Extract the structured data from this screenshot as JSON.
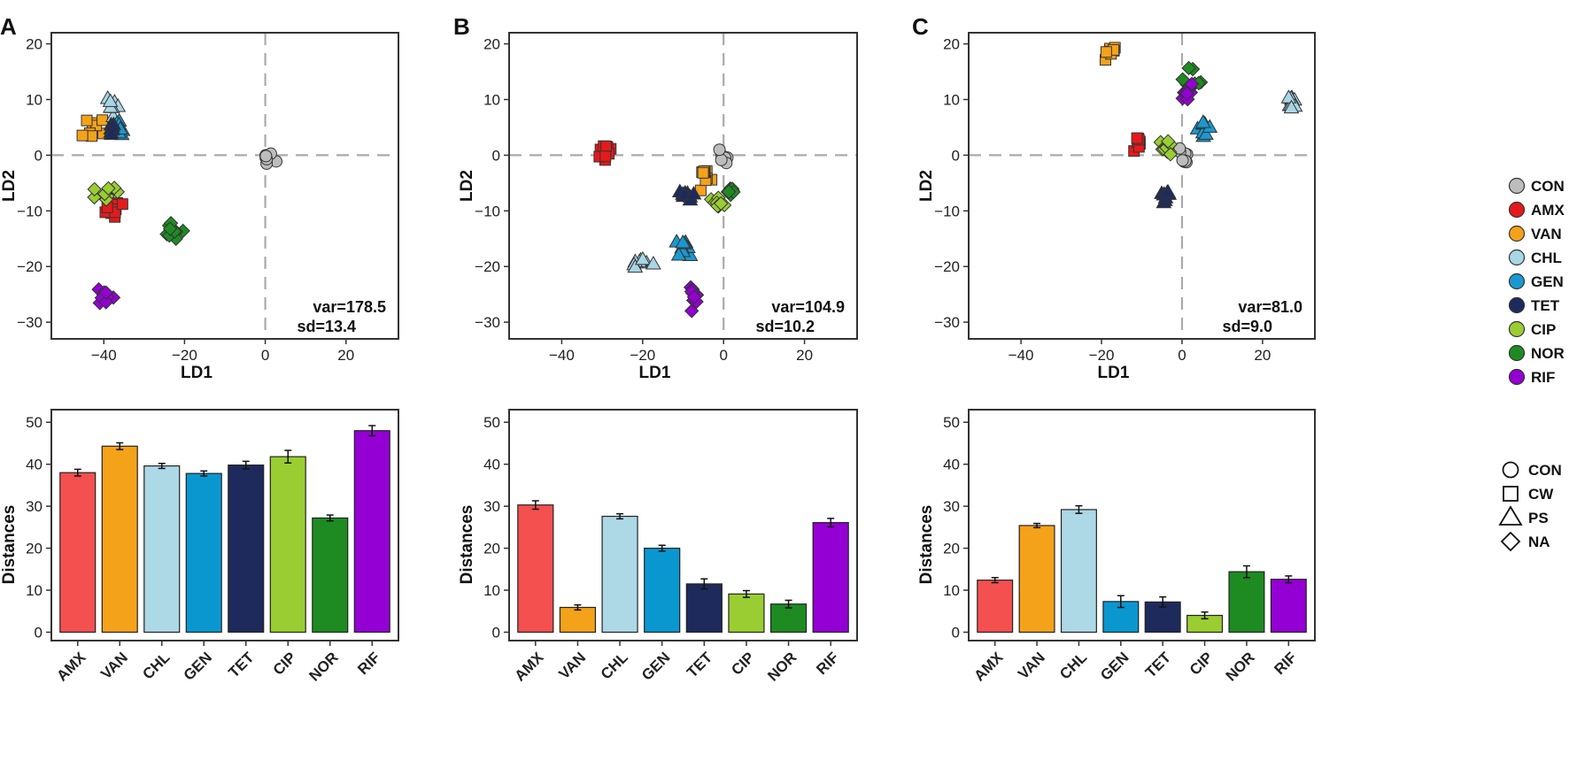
{
  "panel_labels": [
    "A",
    "B",
    "C"
  ],
  "colors": {
    "CON": "#bdbdbd",
    "AMX": "#e41a1c",
    "VAN": "#f5a21b",
    "CHL": "#a9d6e5",
    "GEN": "#1b98cf",
    "TET": "#1d2a5e",
    "CIP": "#9acd32",
    "NOR": "#1e8b22",
    "RIF": "#9400d3"
  },
  "bar_colors": {
    "AMX": "#f4504f",
    "VAN": "#f5a21b",
    "CHL": "#add8e6",
    "GEN": "#0a97d0",
    "TET": "#1f2a5c",
    "CIP": "#9acd32",
    "NOR": "#1e8b22",
    "RIF": "#9400d3"
  },
  "color_legend": {
    "items": [
      {
        "label": "CON",
        "key": "CON"
      },
      {
        "label": "AMX",
        "key": "AMX"
      },
      {
        "label": "VAN",
        "key": "VAN"
      },
      {
        "label": "CHL",
        "key": "CHL"
      },
      {
        "label": "GEN",
        "key": "GEN"
      },
      {
        "label": "TET",
        "key": "TET"
      },
      {
        "label": "CIP",
        "key": "CIP"
      },
      {
        "label": "NOR",
        "key": "NOR"
      },
      {
        "label": "RIF",
        "key": "RIF"
      }
    ]
  },
  "shape_legend": {
    "items": [
      {
        "label": "CON",
        "shape": "circle"
      },
      {
        "label": "CW",
        "shape": "square"
      },
      {
        "label": "PS",
        "shape": "triangle"
      },
      {
        "label": "NA",
        "shape": "diamond"
      }
    ]
  },
  "chart_data": [
    {
      "panel": "A",
      "type": "scatter",
      "xlabel": "LD1",
      "ylabel": "LD2",
      "xlim": [
        -53,
        33
      ],
      "ylim": [
        -33,
        22
      ],
      "xticks": [
        -40,
        -20,
        0,
        20
      ],
      "yticks": [
        -30,
        -20,
        -10,
        0,
        10,
        20
      ],
      "annotation": [
        "var=178.5",
        "sd=13.4"
      ],
      "clusters": [
        {
          "group": "CON",
          "shape": "circle",
          "center": [
            0,
            -0.5
          ],
          "spread": [
            1.2,
            1.2
          ]
        },
        {
          "group": "AMX",
          "shape": "square",
          "center": [
            -37,
            -9.5
          ],
          "spread": [
            1.5,
            1.0
          ]
        },
        {
          "group": "VAN",
          "shape": "square",
          "center": [
            -41.5,
            5
          ],
          "spread": [
            1.8,
            2.0
          ]
        },
        {
          "group": "CHL",
          "shape": "triangle",
          "center": [
            -38,
            9
          ],
          "spread": [
            1.0,
            1.0
          ]
        },
        {
          "group": "GEN",
          "shape": "triangle",
          "center": [
            -36,
            4.5
          ],
          "spread": [
            1.0,
            1.0
          ]
        },
        {
          "group": "TET",
          "shape": "triangle",
          "center": [
            -38,
            5
          ],
          "spread": [
            1.0,
            0.8
          ]
        },
        {
          "group": "CIP",
          "shape": "diamond",
          "center": [
            -40,
            -7
          ],
          "spread": [
            1.8,
            1.5
          ]
        },
        {
          "group": "NOR",
          "shape": "diamond",
          "center": [
            -23,
            -14
          ],
          "spread": [
            1.3,
            1.0
          ]
        },
        {
          "group": "RIF",
          "shape": "diamond",
          "center": [
            -40,
            -25
          ],
          "spread": [
            1.5,
            1.2
          ]
        }
      ]
    },
    {
      "panel": "B",
      "type": "scatter",
      "xlabel": "LD1",
      "ylabel": "LD2",
      "xlim": [
        -53,
        33
      ],
      "ylim": [
        -33,
        22
      ],
      "xticks": [
        -40,
        -20,
        0,
        20
      ],
      "yticks": [
        -30,
        -20,
        -10,
        0,
        10,
        20
      ],
      "annotation": [
        "var=104.9",
        "sd=10.2"
      ],
      "clusters": [
        {
          "group": "CON",
          "shape": "circle",
          "center": [
            0,
            0
          ],
          "spread": [
            1.0,
            1.0
          ]
        },
        {
          "group": "AMX",
          "shape": "square",
          "center": [
            -29,
            1.5
          ],
          "spread": [
            1.2,
            1.6
          ]
        },
        {
          "group": "VAN",
          "shape": "square",
          "center": [
            -4.5,
            -3
          ],
          "spread": [
            1.2,
            1.5
          ]
        },
        {
          "group": "CHL",
          "shape": "triangle",
          "center": [
            -20,
            -19
          ],
          "spread": [
            1.2,
            0.7
          ]
        },
        {
          "group": "GEN",
          "shape": "triangle",
          "center": [
            -10,
            -17
          ],
          "spread": [
            1.0,
            1.0
          ]
        },
        {
          "group": "TET",
          "shape": "triangle",
          "center": [
            -9,
            -7
          ],
          "spread": [
            1.5,
            0.6
          ]
        },
        {
          "group": "CIP",
          "shape": "diamond",
          "center": [
            -1,
            -9
          ],
          "spread": [
            1.2,
            1.0
          ]
        },
        {
          "group": "NOR",
          "shape": "diamond",
          "center": [
            2,
            -6.5
          ],
          "spread": [
            0.8,
            1.0
          ]
        },
        {
          "group": "RIF",
          "shape": "diamond",
          "center": [
            -7.5,
            -25
          ],
          "spread": [
            0.8,
            1.2
          ]
        }
      ]
    },
    {
      "panel": "C",
      "type": "scatter",
      "xlabel": "LD1",
      "ylabel": "LD2",
      "xlim": [
        -53,
        33
      ],
      "ylim": [
        -33,
        22
      ],
      "xticks": [
        -40,
        -20,
        0,
        20
      ],
      "yticks": [
        -30,
        -20,
        -10,
        0,
        10,
        20
      ],
      "annotation": [
        "var=81.0",
        "sd=9.0"
      ],
      "clusters": [
        {
          "group": "CON",
          "shape": "circle",
          "center": [
            0,
            0
          ],
          "spread": [
            0.8,
            1.2
          ]
        },
        {
          "group": "AMX",
          "shape": "square",
          "center": [
            -11,
            2
          ],
          "spread": [
            0.6,
            1.0
          ]
        },
        {
          "group": "VAN",
          "shape": "square",
          "center": [
            -17.5,
            18.5
          ],
          "spread": [
            1.0,
            0.6
          ]
        },
        {
          "group": "CHL",
          "shape": "triangle",
          "center": [
            27,
            9.5
          ],
          "spread": [
            1.0,
            0.8
          ]
        },
        {
          "group": "GEN",
          "shape": "triangle",
          "center": [
            5.5,
            5
          ],
          "spread": [
            1.2,
            1.0
          ]
        },
        {
          "group": "TET",
          "shape": "triangle",
          "center": [
            -4,
            -7
          ],
          "spread": [
            0.8,
            0.6
          ]
        },
        {
          "group": "CIP",
          "shape": "diamond",
          "center": [
            -4,
            1
          ],
          "spread": [
            1.0,
            1.0
          ]
        },
        {
          "group": "NOR",
          "shape": "diamond",
          "center": [
            3,
            13
          ],
          "spread": [
            1.5,
            1.6
          ]
        },
        {
          "group": "RIF",
          "shape": "diamond",
          "center": [
            1.5,
            11.5
          ],
          "spread": [
            1.0,
            1.0
          ]
        }
      ]
    },
    {
      "panel": "A",
      "type": "bar",
      "ylabel": "Distances",
      "ylim": [
        -2,
        53
      ],
      "yticks": [
        0,
        10,
        20,
        30,
        40,
        50
      ],
      "categories": [
        "AMX",
        "VAN",
        "CHL",
        "GEN",
        "TET",
        "CIP",
        "NOR",
        "RIF"
      ],
      "values": [
        38.0,
        44.3,
        39.6,
        37.8,
        39.8,
        41.8,
        27.2,
        48.0
      ],
      "errors": [
        0.8,
        0.8,
        0.6,
        0.6,
        0.9,
        1.5,
        0.7,
        1.2
      ]
    },
    {
      "panel": "B",
      "type": "bar",
      "ylabel": "Distances",
      "ylim": [
        -2,
        53
      ],
      "yticks": [
        0,
        10,
        20,
        30,
        40,
        50
      ],
      "categories": [
        "AMX",
        "VAN",
        "CHL",
        "GEN",
        "TET",
        "CIP",
        "NOR",
        "RIF"
      ],
      "values": [
        30.3,
        5.9,
        27.6,
        20.0,
        11.5,
        9.1,
        6.7,
        26.1
      ],
      "errors": [
        1.0,
        0.6,
        0.6,
        0.7,
        1.2,
        0.8,
        0.9,
        1.0
      ]
    },
    {
      "panel": "C",
      "type": "bar",
      "ylabel": "Distances",
      "ylim": [
        -2,
        53
      ],
      "yticks": [
        0,
        10,
        20,
        30,
        40,
        50
      ],
      "categories": [
        "AMX",
        "VAN",
        "CHL",
        "GEN",
        "TET",
        "CIP",
        "NOR",
        "RIF"
      ],
      "values": [
        12.4,
        25.4,
        29.2,
        7.3,
        7.2,
        4.0,
        14.4,
        12.6
      ],
      "errors": [
        0.6,
        0.5,
        0.9,
        1.4,
        1.2,
        0.8,
        1.4,
        0.8
      ]
    }
  ]
}
